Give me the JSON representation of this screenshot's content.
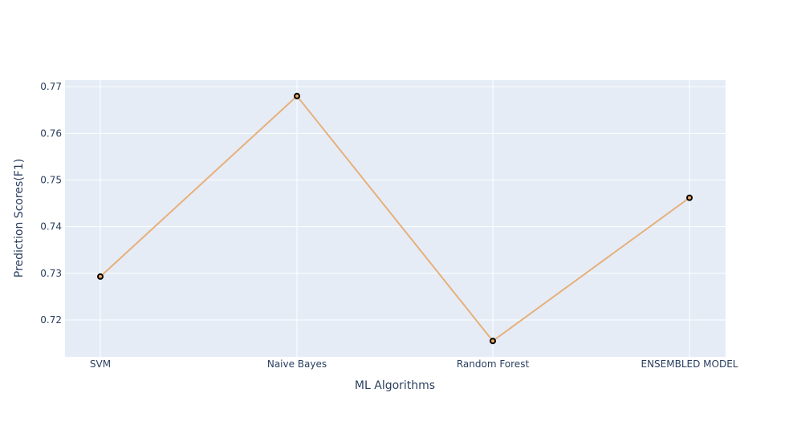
{
  "chart_data": {
    "type": "line",
    "title": "",
    "xlabel": "ML Algorithms",
    "ylabel": "Prediction Scores(F1)",
    "categories": [
      "SVM",
      "Naive Bayes",
      "Random Forest",
      "ENSEMBLED MODEL"
    ],
    "series": [
      {
        "values": [
          0.7293,
          0.768,
          0.7155,
          0.7462
        ]
      }
    ],
    "ylim": [
      0.7121,
      0.7714
    ],
    "yticks": [
      0.72,
      0.73,
      0.74,
      0.75,
      0.76,
      0.77
    ],
    "ytick_labels": [
      "0.72",
      "0.73",
      "0.74",
      "0.75",
      "0.76",
      "0.77"
    ],
    "grid": true,
    "legend": "none",
    "colors": {
      "plot_background": "#e5ecf6",
      "gridline": "#ffffff",
      "line": "#e6b07a",
      "marker_fill": "#f0a860",
      "marker_edge": "#000000",
      "text": "#2a3f5f"
    }
  }
}
